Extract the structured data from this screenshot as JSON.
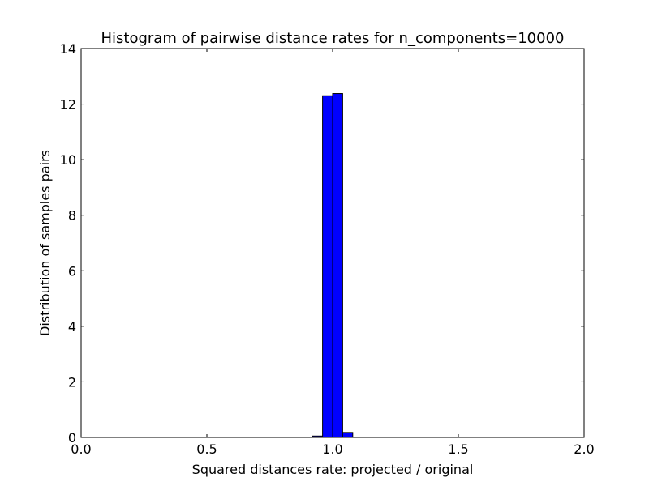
{
  "chart_data": {
    "type": "bar",
    "title": "Histogram of pairwise distance rates for n_components=10000",
    "xlabel": "Squared distances rate: projected / original",
    "ylabel": "Distribution of samples pairs",
    "xlim": [
      0.0,
      2.0
    ],
    "ylim": [
      0,
      14
    ],
    "x_ticks": [
      {
        "value": 0.0,
        "label": "0.0"
      },
      {
        "value": 0.5,
        "label": "0.5"
      },
      {
        "value": 1.0,
        "label": "1.0"
      },
      {
        "value": 1.5,
        "label": "1.5"
      },
      {
        "value": 2.0,
        "label": "2.0"
      }
    ],
    "y_ticks": [
      {
        "value": 0,
        "label": "0"
      },
      {
        "value": 2,
        "label": "2"
      },
      {
        "value": 4,
        "label": "4"
      },
      {
        "value": 6,
        "label": "6"
      },
      {
        "value": 8,
        "label": "8"
      },
      {
        "value": 10,
        "label": "10"
      },
      {
        "value": 12,
        "label": "12"
      },
      {
        "value": 14,
        "label": "14"
      }
    ],
    "bins": [
      {
        "x0": 0.92,
        "x1": 0.96,
        "value": 0.05
      },
      {
        "x0": 0.96,
        "x1": 1.0,
        "value": 12.3
      },
      {
        "x0": 1.0,
        "x1": 1.04,
        "value": 12.38
      },
      {
        "x0": 1.04,
        "x1": 1.08,
        "value": 0.18
      }
    ],
    "bar_color": "#0000ff",
    "edge_color": "#000000",
    "grid": false
  }
}
